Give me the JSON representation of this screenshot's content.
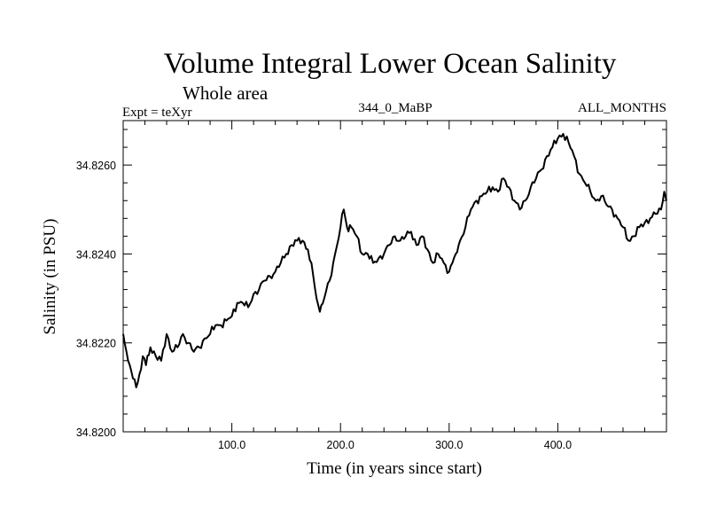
{
  "chart_data": {
    "type": "line",
    "title": "Volume Integral Lower Ocean Salinity",
    "subtitle": "Whole area",
    "label_left": "Expt = teXyr",
    "label_center": "344_0_MaBP",
    "label_right": "ALL_MONTHS",
    "xlabel": "Time (in years since start)",
    "ylabel": "Salinity (in PSU)",
    "xlim": [
      0,
      500
    ],
    "ylim": [
      34.82,
      34.827
    ],
    "x_tick_labels": [
      "100.0",
      "200.0",
      "300.0",
      "400.0"
    ],
    "x_ticks": [
      100,
      200,
      300,
      400
    ],
    "y_tick_labels": [
      "34.8200",
      "34.8220",
      "34.8240",
      "34.8260"
    ],
    "y_ticks": [
      34.82,
      34.822,
      34.824,
      34.826
    ],
    "grid": false,
    "series": [
      {
        "x": [
          0,
          3,
          6,
          9,
          12,
          15,
          18,
          21,
          25,
          30,
          35,
          40,
          45,
          50,
          55,
          60,
          65,
          70,
          75,
          80,
          85,
          90,
          95,
          100,
          105,
          110,
          115,
          120,
          125,
          130,
          135,
          140,
          145,
          150,
          155,
          160,
          165,
          170,
          175,
          178,
          181,
          185,
          190,
          195,
          200,
          203,
          206,
          210,
          215,
          220,
          225,
          230,
          235,
          240,
          245,
          250,
          255,
          260,
          265,
          270,
          275,
          280,
          285,
          290,
          295,
          300,
          303,
          306,
          310,
          315,
          320,
          325,
          330,
          335,
          340,
          345,
          350,
          355,
          360,
          365,
          370,
          375,
          380,
          385,
          390,
          395,
          400,
          405,
          410,
          415,
          420,
          425,
          430,
          435,
          440,
          445,
          450,
          455,
          460,
          465,
          470,
          475,
          480,
          485,
          490,
          495,
          498,
          500
        ],
        "y": [
          34.8222,
          34.8218,
          34.8215,
          34.8212,
          34.821,
          34.8213,
          34.8217,
          34.8215,
          34.8219,
          34.8217,
          34.8216,
          34.8222,
          34.8218,
          34.8219,
          34.8222,
          34.822,
          34.8218,
          34.8219,
          34.8221,
          34.8222,
          34.8224,
          34.8224,
          34.8225,
          34.8226,
          34.8229,
          34.8229,
          34.8228,
          34.8231,
          34.8232,
          34.8234,
          34.8235,
          34.8236,
          34.8238,
          34.824,
          34.8242,
          34.8243,
          34.8243,
          34.8241,
          34.8235,
          34.823,
          34.8227,
          34.823,
          34.8234,
          34.824,
          34.8246,
          34.825,
          34.8246,
          34.8246,
          34.8244,
          34.824,
          34.824,
          34.8238,
          34.8239,
          34.824,
          34.8242,
          34.8244,
          34.8243,
          34.8244,
          34.8245,
          34.8242,
          34.8244,
          34.8241,
          34.8238,
          34.824,
          34.8238,
          34.8236,
          34.8238,
          34.824,
          34.8243,
          34.8246,
          34.825,
          34.8252,
          34.8253,
          34.8254,
          34.8255,
          34.8254,
          34.8257,
          34.8255,
          34.8252,
          34.825,
          34.8252,
          34.8255,
          34.8257,
          34.8259,
          34.8262,
          34.8264,
          34.8266,
          34.8267,
          34.8265,
          34.8262,
          34.8258,
          34.8256,
          34.8254,
          34.8252,
          34.8253,
          34.8251,
          34.825,
          34.8248,
          34.8246,
          34.8243,
          34.8244,
          34.8246,
          34.8247,
          34.8248,
          34.8249,
          34.825,
          34.8254,
          34.8252
        ]
      }
    ]
  }
}
